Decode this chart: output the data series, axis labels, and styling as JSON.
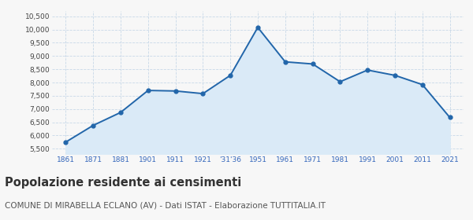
{
  "years_numeric": [
    1861,
    1871,
    1881,
    1901,
    1911,
    1921,
    1936,
    1951,
    1961,
    1971,
    1981,
    1991,
    2001,
    2011,
    2021
  ],
  "x_labels": [
    "1861",
    "1871",
    "1881",
    "1901",
    "1911",
    "1921",
    "'31'36",
    "1951",
    "1961",
    "1971",
    "1981",
    "1991",
    "2001",
    "2011",
    "2021"
  ],
  "population": [
    5750,
    6380,
    6870,
    7700,
    7680,
    7580,
    8270,
    10080,
    8780,
    8700,
    8030,
    8470,
    8270,
    7920,
    6680
  ],
  "line_color": "#2266aa",
  "fill_color": "#daeaf7",
  "marker_color": "#2266aa",
  "grid_color": "#c8d8e8",
  "bg_color": "#f7f7f7",
  "ylim": [
    5300,
    10700
  ],
  "yticks": [
    5500,
    6000,
    6500,
    7000,
    7500,
    8000,
    8500,
    9000,
    9500,
    10000,
    10500
  ],
  "ytick_labels": [
    "5,500",
    "6,000",
    "6,500",
    "7,000",
    "7,500",
    "8,000",
    "8,500",
    "9,000",
    "9,500",
    "10,000",
    "10,500"
  ],
  "title": "Popolazione residente ai censimenti",
  "subtitle": "COMUNE DI MIRABELLA ECLANO (AV) - Dati ISTAT - Elaborazione TUTTITALIA.IT",
  "title_fontsize": 10.5,
  "subtitle_fontsize": 7.5,
  "x_label_color": "#3366bb",
  "y_label_color": "#444444"
}
